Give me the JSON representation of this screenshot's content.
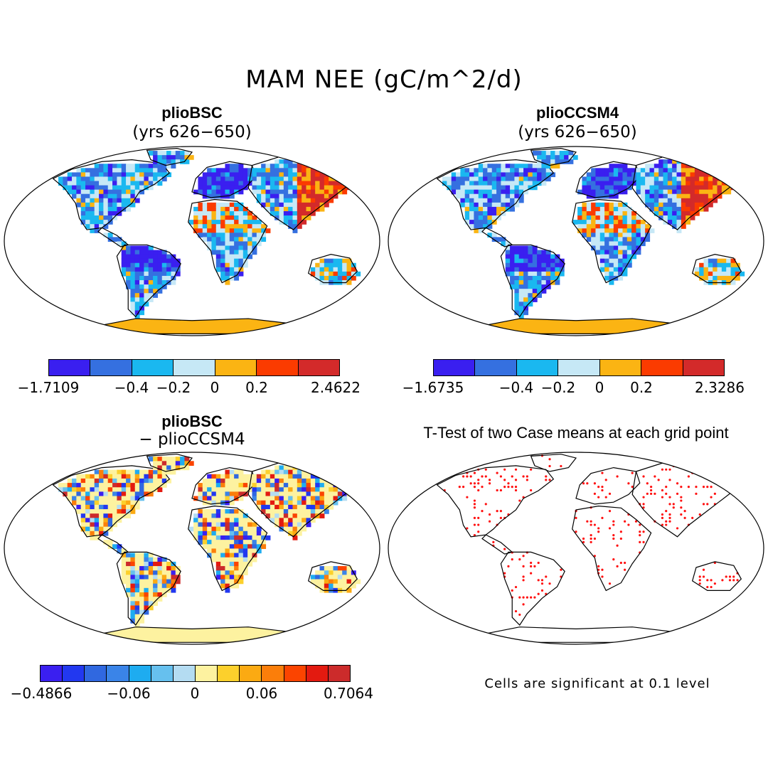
{
  "title": "MAM NEE (gC/m^2/d)",
  "panels": [
    {
      "title": "plioBSC",
      "subtitle": "(yrs 626−650)"
    },
    {
      "title": "plioCCSM4",
      "subtitle": "(yrs 626−650)"
    },
    {
      "title": "plioBSC",
      "subtitle": "− plioCCSM4"
    },
    {
      "title": "T-Test of two Case means at each grid point",
      "subtitle": ""
    }
  ],
  "colorbars": [
    {
      "colors": [
        "#3a1ff0",
        "#3570e0",
        "#1ab8f0",
        "#c6e8f6",
        "#fbb413",
        "#fb3b00",
        "#d32a2a"
      ],
      "labels": [
        "−1.7109",
        "−0.4",
        "−0.2",
        "0",
        "0.2",
        "2.4622"
      ]
    },
    {
      "colors": [
        "#3a1ff0",
        "#3570e0",
        "#1ab8f0",
        "#c6e8f6",
        "#fbb413",
        "#fb3b00",
        "#d32a2a"
      ],
      "labels": [
        "−1.6735",
        "−0.4",
        "−0.2",
        "0",
        "0.2",
        "2.3286"
      ]
    },
    {
      "colors": [
        "#3a1ff0",
        "#2238f0",
        "#3068e0",
        "#3a84e8",
        "#1eacf0",
        "#66c0ee",
        "#b4dcf2",
        "#fdf2a0",
        "#fcd02c",
        "#fbaa12",
        "#fb7e0a",
        "#fb4400",
        "#e31a10",
        "#cc2b2b"
      ],
      "labels": [
        "−0.4866",
        "−0.06",
        "0",
        "0.06",
        "0.7064"
      ]
    }
  ],
  "note": "Cells are significant at 0.1 level"
}
